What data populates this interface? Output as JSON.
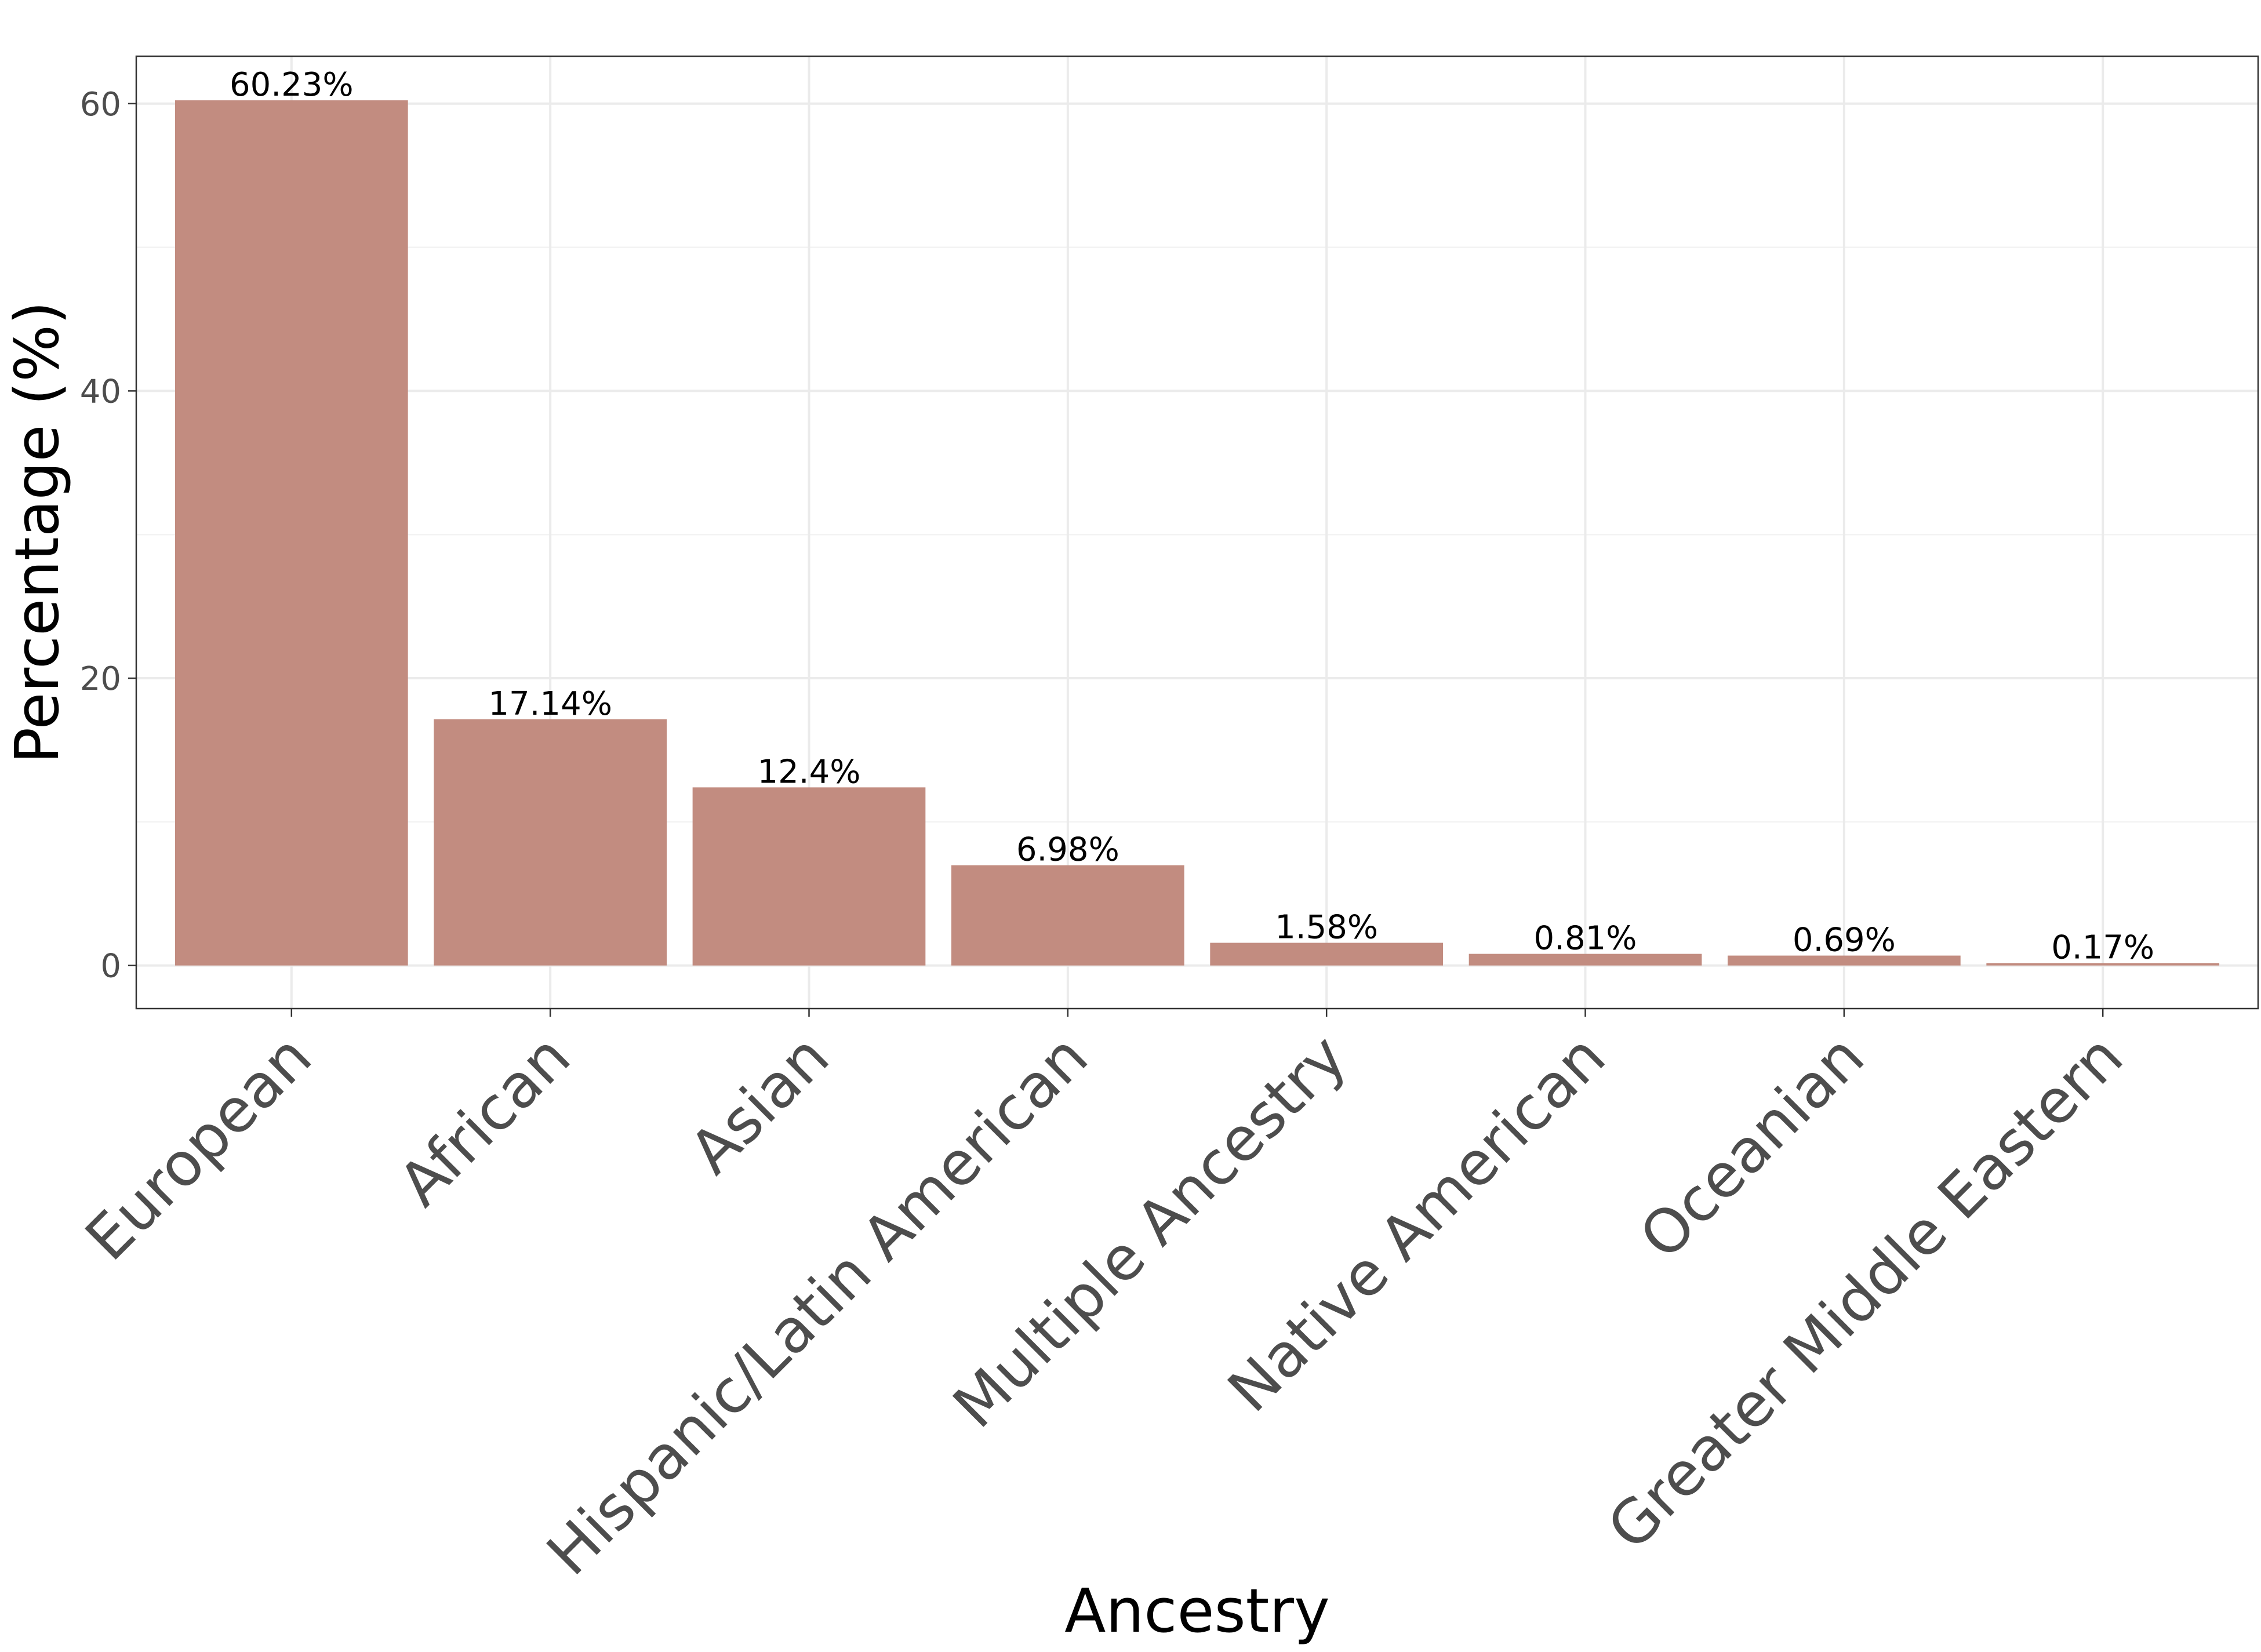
{
  "chart_data": {
    "type": "bar",
    "title": "",
    "xlabel": "Ancestry",
    "ylabel": "Percentage (%)",
    "categories": [
      "European",
      "African",
      "Asian",
      "Hispanic/Latin American",
      "Multiple Ancestry",
      "Native American",
      "Oceanian",
      "Greater Middle Eastern"
    ],
    "values": [
      60.23,
      17.14,
      12.4,
      6.98,
      1.58,
      0.81,
      0.69,
      0.17
    ],
    "data_labels": [
      "60.23%",
      "17.14%",
      "12.4%",
      "6.98%",
      "1.58%",
      "0.81%",
      "0.69%",
      "0.17%"
    ],
    "y_ticks": [
      0,
      20,
      40,
      60
    ],
    "y_tick_labels": [
      "0",
      "20",
      "40",
      "60"
    ],
    "ylim": [
      -3,
      63.3
    ],
    "grid": true,
    "legend": "none",
    "colors": {
      "bar": "#c28c80",
      "grid": "#ebebeb",
      "border": "#333333",
      "tick_text": "#4d4d4d"
    }
  }
}
